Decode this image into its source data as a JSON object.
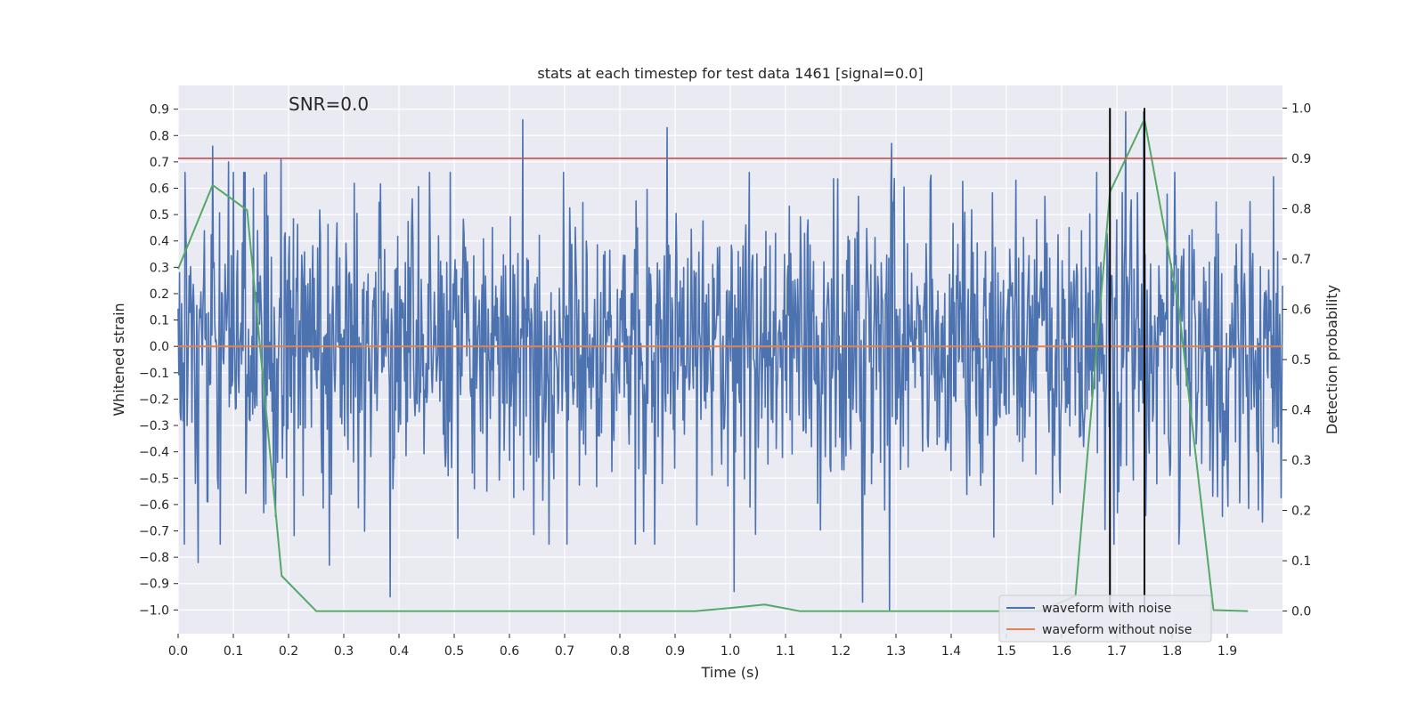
{
  "chart_data": {
    "type": "line",
    "title": "stats at each timestep for test data 1461 [signal=0.0]",
    "xlabel": "Time (s)",
    "ylabel": "Whitened strain",
    "y2label": "Detection probability",
    "annotation": "SNR=0.0",
    "xlim": [
      0.0,
      2.0
    ],
    "ylim": [
      -1.09,
      0.99
    ],
    "y2lim": [
      -0.045,
      1.045
    ],
    "grid": true,
    "x_ticks": [
      0.0,
      0.1,
      0.2,
      0.3,
      0.4,
      0.5,
      0.6,
      0.7,
      0.8,
      0.9,
      1.0,
      1.1,
      1.2,
      1.3,
      1.4,
      1.5,
      1.6,
      1.7,
      1.8,
      1.9
    ],
    "x_tick_labels": [
      "0.0",
      "0.1",
      "0.2",
      "0.3",
      "0.4",
      "0.5",
      "0.6",
      "0.7",
      "0.8",
      "0.9",
      "1.0",
      "1.1",
      "1.2",
      "1.3",
      "1.4",
      "1.5",
      "1.6",
      "1.7",
      "1.8",
      "1.9"
    ],
    "y_ticks": [
      0.9,
      0.8,
      0.7,
      0.6,
      0.5,
      0.4,
      0.3,
      0.2,
      0.1,
      0.0,
      -0.1,
      -0.2,
      -0.3,
      -0.4,
      -0.5,
      -0.6,
      -0.7,
      -0.8,
      -0.9,
      -1.0
    ],
    "y_tick_labels": [
      "0.9",
      "0.8",
      "0.7",
      "0.6",
      "0.5",
      "0.4",
      "0.3",
      "0.2",
      "0.1",
      "0.0",
      "−0.1",
      "−0.2",
      "−0.3",
      "−0.4",
      "−0.5",
      "−0.6",
      "−0.7",
      "−0.8",
      "−0.9",
      "−1.0"
    ],
    "y2_ticks": [
      1.0,
      0.9,
      0.8,
      0.7,
      0.6,
      0.5,
      0.4,
      0.3,
      0.2,
      0.1,
      0.0
    ],
    "y2_tick_labels": [
      "1.0",
      "0.9",
      "0.8",
      "0.7",
      "0.6",
      "0.5",
      "0.4",
      "0.3",
      "0.2",
      "0.1",
      "0.0"
    ],
    "legend_position": "lower-right",
    "series": [
      {
        "name": "waveform with noise",
        "color": "#4c72b0",
        "generated": true,
        "x_range": [
          0.0,
          2.0
        ],
        "n_points": 1600,
        "seed": 1461,
        "std": 0.27,
        "spikes": [
          {
            "x": 0.002,
            "y": 0.28
          },
          {
            "x": 0.013,
            "y": 0.66
          },
          {
            "x": 0.036,
            "y": -0.82
          },
          {
            "x": 0.062,
            "y": 0.76
          },
          {
            "x": 0.091,
            "y": 0.7
          },
          {
            "x": 0.186,
            "y": 0.71
          },
          {
            "x": 0.274,
            "y": -0.83
          },
          {
            "x": 0.384,
            "y": -0.95
          },
          {
            "x": 0.624,
            "y": 0.86
          },
          {
            "x": 0.886,
            "y": 0.83
          },
          {
            "x": 1.007,
            "y": -0.93
          },
          {
            "x": 1.24,
            "y": -0.97
          },
          {
            "x": 1.288,
            "y": -1.0
          },
          {
            "x": 1.292,
            "y": 0.77
          },
          {
            "x": 1.716,
            "y": 0.89
          },
          {
            "x": 1.748,
            "y": 0.89
          }
        ]
      },
      {
        "name": "waveform without noise",
        "color": "#dd8452",
        "x": [
          0.0,
          2.0
        ],
        "y": [
          0.0,
          0.0
        ]
      },
      {
        "name": "detection probability",
        "color": "#55a868",
        "axis": "right",
        "x": [
          0.0,
          0.0625,
          0.125,
          0.1875,
          0.25,
          0.3125,
          0.375,
          0.4375,
          0.5,
          0.5625,
          0.625,
          0.6875,
          0.75,
          0.8125,
          0.875,
          0.9375,
          1.0,
          1.0625,
          1.125,
          1.1875,
          1.25,
          1.3125,
          1.375,
          1.4375,
          1.5,
          1.5625,
          1.625,
          1.6875,
          1.75,
          1.8125,
          1.875,
          1.9375
        ],
        "y": [
          0.68,
          0.847,
          0.797,
          0.07,
          0.0,
          0.0,
          0.0,
          0.0,
          0.0,
          0.0,
          0.0,
          0.0,
          0.0,
          0.0,
          0.0,
          0.0,
          0.006,
          0.013,
          0.0,
          0.0,
          0.0,
          0.0,
          0.0,
          0.0,
          0.0,
          0.0,
          0.03,
          0.833,
          0.978,
          0.6,
          0.002,
          0.0
        ]
      }
    ],
    "thresholds": [
      {
        "name": "threshold-line",
        "y2": 0.9,
        "color": "#c44e52"
      }
    ],
    "vlines": [
      {
        "name": "detection-marker",
        "x": 1.6875,
        "y2": [
          0.0,
          1.0
        ],
        "color": "#000000"
      },
      {
        "name": "detection-marker",
        "x": 1.75,
        "y2": [
          0.0,
          1.0
        ],
        "color": "#000000"
      }
    ],
    "legend": [
      {
        "label": "waveform with noise",
        "color": "#4c72b0"
      },
      {
        "label": "waveform without noise",
        "color": "#dd8452"
      }
    ],
    "style": {
      "axes_background": "#eaeaf2",
      "grid_color": "#ffffff",
      "page_background": "#ffffff"
    }
  }
}
